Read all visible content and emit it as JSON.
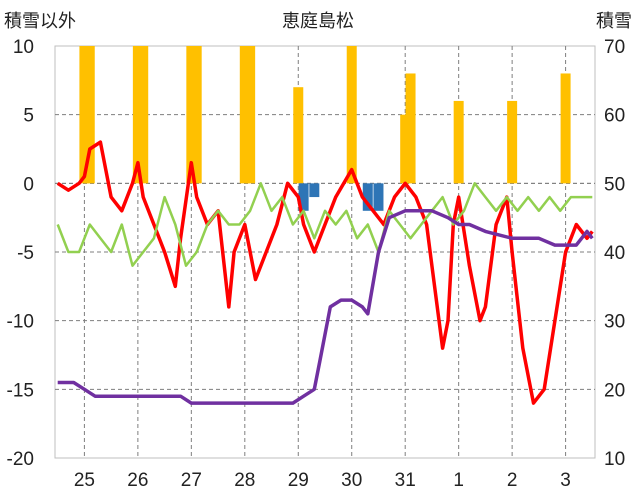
{
  "chart_data": {
    "type": "line",
    "title": "恵庭島松",
    "ylabel_left": "積雪以外",
    "ylabel_right": "積雪",
    "ylim_left": [
      -20,
      10
    ],
    "ylim_right": [
      10,
      70
    ],
    "yticks_left": [
      "10",
      "5",
      "0",
      "-5",
      "-10",
      "-15",
      "-20"
    ],
    "yticks_right": [
      "70",
      "60",
      "50",
      "40",
      "30",
      "20",
      "10"
    ],
    "xticks": [
      "25",
      "26",
      "27",
      "28",
      "29",
      "30",
      "31",
      "1",
      "2",
      "3"
    ],
    "grid": true,
    "colors": {
      "temp": "#ff0000",
      "humidity_like": "#92d050",
      "snow": "#7030a0",
      "precip_pos": "#ffc000",
      "precip_neg": "#2e75b6"
    },
    "series": [
      {
        "name": "",
        "axis": "left",
        "color": "#ff0000",
        "x": [
          24.5,
          24.7,
          24.9,
          25.0,
          25.1,
          25.3,
          25.5,
          25.7,
          25.9,
          26.0,
          26.1,
          26.3,
          26.5,
          26.7,
          26.8,
          27.0,
          27.1,
          27.3,
          27.5,
          27.7,
          27.8,
          28.0,
          28.2,
          28.4,
          28.6,
          28.8,
          29.0,
          29.1,
          29.3,
          29.5,
          29.7,
          30.0,
          30.2,
          30.4,
          30.6,
          30.8,
          31.0,
          31.2,
          31.4,
          31.5,
          31.7,
          31.8,
          31.9,
          32.0,
          32.2,
          32.4,
          32.5,
          32.7,
          32.9,
          33.0,
          33.2,
          33.4,
          33.6,
          33.8,
          34.0,
          34.2,
          34.4,
          34.5
        ],
        "values": [
          0,
          -0.5,
          0,
          0.5,
          2.5,
          3,
          -1,
          -2,
          0,
          1.5,
          -1,
          -3,
          -5,
          -7.5,
          -4,
          1.5,
          -1,
          -3,
          -2,
          -9,
          -5,
          -3,
          -7,
          -5,
          -3,
          0,
          -1,
          -3,
          -5,
          -3,
          -1,
          1,
          -1,
          -2,
          -3,
          -1,
          0,
          -1,
          -3,
          -6,
          -12,
          -10,
          -3,
          -1,
          -6,
          -10,
          -9,
          -3,
          -1,
          -5,
          -12,
          -16,
          -15,
          -10,
          -5,
          -3,
          -4,
          -3.5
        ]
      },
      {
        "name": "",
        "axis": "left",
        "color": "#92d050",
        "x": [
          24.5,
          24.7,
          24.9,
          25.1,
          25.3,
          25.5,
          25.7,
          25.9,
          26.1,
          26.3,
          26.5,
          26.7,
          26.9,
          27.1,
          27.3,
          27.5,
          27.7,
          27.9,
          28.1,
          28.3,
          28.5,
          28.7,
          28.9,
          29.1,
          29.3,
          29.5,
          29.7,
          29.9,
          30.1,
          30.3,
          30.5,
          30.7,
          30.9,
          31.1,
          31.3,
          31.5,
          31.7,
          31.9,
          32.1,
          32.3,
          32.5,
          32.7,
          32.9,
          33.1,
          33.3,
          33.5,
          33.7,
          33.9,
          34.1,
          34.3,
          34.5
        ],
        "values": [
          -3,
          -5,
          -5,
          -3,
          -4,
          -5,
          -3,
          -6,
          -5,
          -4,
          -1,
          -3,
          -6,
          -5,
          -3,
          -2,
          -3,
          -3,
          -2,
          0,
          -2,
          -1,
          -3,
          -2,
          -4,
          -2,
          -3,
          -2,
          -4,
          -3,
          -5,
          -2,
          -3,
          -4,
          -3,
          -2,
          -1,
          -3,
          -2,
          0,
          -1,
          -2,
          -1,
          -2,
          -1,
          -2,
          -1,
          -2,
          -1,
          -1,
          -1
        ]
      },
      {
        "name": "",
        "axis": "right",
        "color": "#7030a0",
        "x": [
          24.5,
          24.8,
          25.0,
          25.2,
          25.5,
          26.0,
          26.5,
          26.8,
          27.0,
          27.2,
          27.5,
          28.0,
          28.5,
          28.9,
          29.1,
          29.3,
          29.4,
          29.6,
          29.8,
          30.0,
          30.2,
          30.3,
          30.5,
          30.7,
          31.0,
          31.2,
          31.5,
          31.8,
          32.0,
          32.2,
          32.5,
          33.0,
          33.5,
          33.8,
          34.0,
          34.2,
          34.4,
          34.5
        ],
        "values": [
          21,
          21,
          20,
          19,
          19,
          19,
          19,
          19,
          18,
          18,
          18,
          18,
          18,
          18,
          19,
          20,
          24,
          32,
          33,
          33,
          32,
          31,
          40,
          45,
          46,
          46,
          46,
          45,
          44,
          44,
          43,
          42,
          42,
          41,
          41,
          41,
          43,
          42
        ]
      },
      {
        "name": "",
        "axis": "left",
        "type": "bar",
        "color": "#ffc000",
        "x": [
          25.0,
          25.1,
          26.0,
          26.1,
          27.0,
          27.1,
          28.0,
          28.1,
          29.0,
          30.0,
          31.0,
          31.1,
          32.0,
          33.0,
          34.0
        ],
        "values": [
          10,
          10,
          10,
          10,
          10,
          10,
          10,
          10,
          7,
          10,
          5,
          8,
          6,
          6,
          8
        ]
      },
      {
        "name": "",
        "axis": "left",
        "type": "bar",
        "color": "#2e75b6",
        "x": [
          29.1,
          29.3,
          30.3,
          30.5
        ],
        "values": [
          -2,
          -1,
          -2,
          -2
        ]
      }
    ]
  }
}
